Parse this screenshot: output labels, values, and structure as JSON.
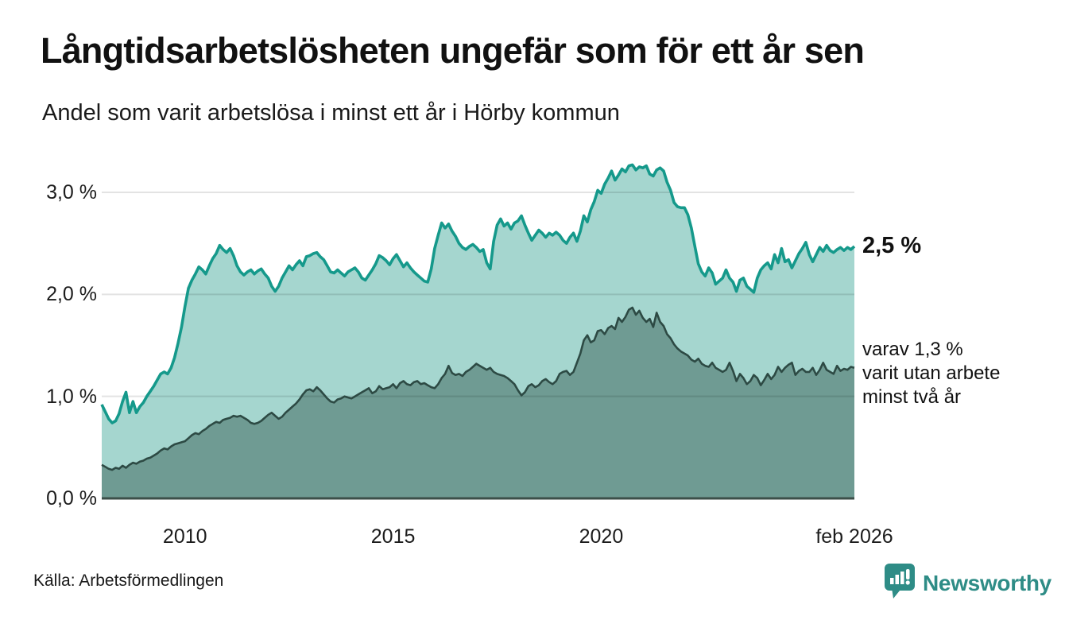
{
  "header": {
    "title": "Långtidsarbetslösheten ungefär som för ett år sen",
    "subtitle": "Andel som varit arbetslösa i minst ett år i Hörby kommun"
  },
  "source_note": "Källa: Arbetsförmedlingen",
  "brand": {
    "name": "Newsworthy",
    "color": "#2e8c86",
    "icon": "speech-bubble-bar-chart-icon"
  },
  "chart_data": {
    "type": "area",
    "title": "Långtidsarbetslösheten ungefär som för ett år sen",
    "subtitle": "Andel som varit arbetslösa i minst ett år i Hörby kommun",
    "source": "Källa: Arbetsförmedlingen",
    "unit": "%",
    "frequency": "monthly",
    "x_start": "jan 2008",
    "x_end": "feb 2026",
    "ylim": [
      0,
      3.4
    ],
    "grid": true,
    "legend_position": "inline-annotations",
    "colors": {
      "series1_line": "#15998b",
      "series1_fill": "#a5d6cf",
      "series2_line": "#2d4a44",
      "series2_fill": "#6f9b93",
      "gridline": "#e3e3e3",
      "baseline": "#3c4f49"
    },
    "y_axis": {
      "ticks": [
        {
          "label": "3,0 %",
          "value": 3.0
        },
        {
          "label": "2,0 %",
          "value": 2.0
        },
        {
          "label": "1,0 %",
          "value": 1.0
        },
        {
          "label": "0,0 %",
          "value": 0.0
        }
      ]
    },
    "x_axis": {
      "ticks": [
        {
          "label": "2010",
          "month_index": 24
        },
        {
          "label": "2015",
          "month_index": 84
        },
        {
          "label": "2020",
          "month_index": 144
        },
        {
          "label": "feb 2026",
          "month_index": 217
        }
      ]
    },
    "annotations": {
      "end_value": "2,5 %",
      "end_sub": "varav 1,3 %\nvarit utan arbete\nminst två år"
    },
    "series": [
      {
        "name": "Andel som varit arbetslösa i minst ett år",
        "end_label": "2,5 %",
        "values": [
          0.92,
          0.85,
          0.78,
          0.74,
          0.76,
          0.83,
          0.95,
          1.04,
          0.84,
          0.95,
          0.84,
          0.9,
          0.94,
          1.0,
          1.05,
          1.1,
          1.16,
          1.22,
          1.24,
          1.22,
          1.28,
          1.38,
          1.52,
          1.68,
          1.88,
          2.06,
          2.14,
          2.2,
          2.27,
          2.24,
          2.2,
          2.28,
          2.35,
          2.4,
          2.48,
          2.44,
          2.41,
          2.45,
          2.38,
          2.28,
          2.22,
          2.19,
          2.22,
          2.24,
          2.2,
          2.23,
          2.25,
          2.2,
          2.16,
          2.08,
          2.03,
          2.08,
          2.16,
          2.22,
          2.28,
          2.24,
          2.29,
          2.33,
          2.28,
          2.37,
          2.38,
          2.4,
          2.41,
          2.37,
          2.34,
          2.28,
          2.22,
          2.21,
          2.24,
          2.21,
          2.18,
          2.22,
          2.24,
          2.26,
          2.22,
          2.16,
          2.14,
          2.19,
          2.24,
          2.3,
          2.38,
          2.36,
          2.33,
          2.29,
          2.35,
          2.39,
          2.33,
          2.27,
          2.31,
          2.26,
          2.22,
          2.19,
          2.16,
          2.13,
          2.12,
          2.25,
          2.45,
          2.58,
          2.7,
          2.65,
          2.69,
          2.62,
          2.57,
          2.5,
          2.46,
          2.44,
          2.47,
          2.49,
          2.46,
          2.42,
          2.44,
          2.31,
          2.25,
          2.52,
          2.68,
          2.74,
          2.67,
          2.7,
          2.64,
          2.7,
          2.72,
          2.77,
          2.68,
          2.6,
          2.53,
          2.58,
          2.63,
          2.6,
          2.56,
          2.6,
          2.58,
          2.61,
          2.58,
          2.53,
          2.5,
          2.56,
          2.6,
          2.52,
          2.62,
          2.77,
          2.71,
          2.83,
          2.91,
          3.02,
          2.99,
          3.08,
          3.14,
          3.21,
          3.12,
          3.17,
          3.23,
          3.2,
          3.26,
          3.27,
          3.22,
          3.25,
          3.24,
          3.26,
          3.18,
          3.16,
          3.22,
          3.24,
          3.21,
          3.1,
          3.02,
          2.9,
          2.86,
          2.85,
          2.85,
          2.78,
          2.65,
          2.47,
          2.3,
          2.22,
          2.18,
          2.26,
          2.21,
          2.1,
          2.13,
          2.16,
          2.24,
          2.16,
          2.12,
          2.03,
          2.14,
          2.16,
          2.08,
          2.05,
          2.02,
          2.16,
          2.24,
          2.28,
          2.31,
          2.25,
          2.39,
          2.31,
          2.45,
          2.32,
          2.34,
          2.26,
          2.33,
          2.4,
          2.45,
          2.51,
          2.39,
          2.32,
          2.39,
          2.46,
          2.42,
          2.48,
          2.43,
          2.41,
          2.44,
          2.46,
          2.43,
          2.46,
          2.44,
          2.47
        ]
      },
      {
        "name": "varav utan arbete minst två år",
        "end_label": "varav 1,3 % varit utan arbete minst två år",
        "values": [
          0.33,
          0.31,
          0.29,
          0.28,
          0.3,
          0.29,
          0.32,
          0.3,
          0.33,
          0.35,
          0.34,
          0.36,
          0.37,
          0.39,
          0.4,
          0.42,
          0.44,
          0.47,
          0.49,
          0.48,
          0.51,
          0.53,
          0.54,
          0.55,
          0.56,
          0.59,
          0.62,
          0.64,
          0.63,
          0.66,
          0.68,
          0.71,
          0.73,
          0.75,
          0.74,
          0.77,
          0.78,
          0.79,
          0.81,
          0.8,
          0.81,
          0.79,
          0.77,
          0.74,
          0.73,
          0.74,
          0.76,
          0.79,
          0.82,
          0.84,
          0.81,
          0.78,
          0.8,
          0.84,
          0.87,
          0.9,
          0.93,
          0.97,
          1.02,
          1.06,
          1.07,
          1.05,
          1.09,
          1.06,
          1.02,
          0.98,
          0.95,
          0.94,
          0.97,
          0.98,
          1.0,
          0.99,
          0.98,
          1.0,
          1.02,
          1.04,
          1.06,
          1.08,
          1.03,
          1.05,
          1.1,
          1.07,
          1.08,
          1.09,
          1.12,
          1.08,
          1.13,
          1.15,
          1.12,
          1.11,
          1.14,
          1.15,
          1.12,
          1.13,
          1.11,
          1.09,
          1.08,
          1.12,
          1.18,
          1.22,
          1.3,
          1.23,
          1.21,
          1.22,
          1.2,
          1.24,
          1.26,
          1.29,
          1.32,
          1.3,
          1.28,
          1.26,
          1.28,
          1.24,
          1.22,
          1.21,
          1.2,
          1.18,
          1.15,
          1.12,
          1.06,
          1.01,
          1.04,
          1.1,
          1.12,
          1.09,
          1.11,
          1.15,
          1.17,
          1.14,
          1.12,
          1.15,
          1.22,
          1.24,
          1.25,
          1.21,
          1.24,
          1.33,
          1.42,
          1.55,
          1.6,
          1.53,
          1.55,
          1.64,
          1.65,
          1.61,
          1.67,
          1.69,
          1.66,
          1.77,
          1.73,
          1.78,
          1.85,
          1.87,
          1.8,
          1.84,
          1.77,
          1.73,
          1.76,
          1.68,
          1.82,
          1.73,
          1.69,
          1.61,
          1.57,
          1.51,
          1.47,
          1.44,
          1.42,
          1.4,
          1.36,
          1.34,
          1.37,
          1.32,
          1.3,
          1.29,
          1.33,
          1.28,
          1.26,
          1.24,
          1.26,
          1.33,
          1.25,
          1.15,
          1.22,
          1.18,
          1.12,
          1.15,
          1.21,
          1.18,
          1.11,
          1.16,
          1.22,
          1.17,
          1.21,
          1.29,
          1.24,
          1.28,
          1.31,
          1.33,
          1.21,
          1.25,
          1.27,
          1.24,
          1.24,
          1.28,
          1.21,
          1.26,
          1.33,
          1.26,
          1.24,
          1.22,
          1.3,
          1.25,
          1.27,
          1.26,
          1.29,
          1.28
        ]
      }
    ]
  }
}
